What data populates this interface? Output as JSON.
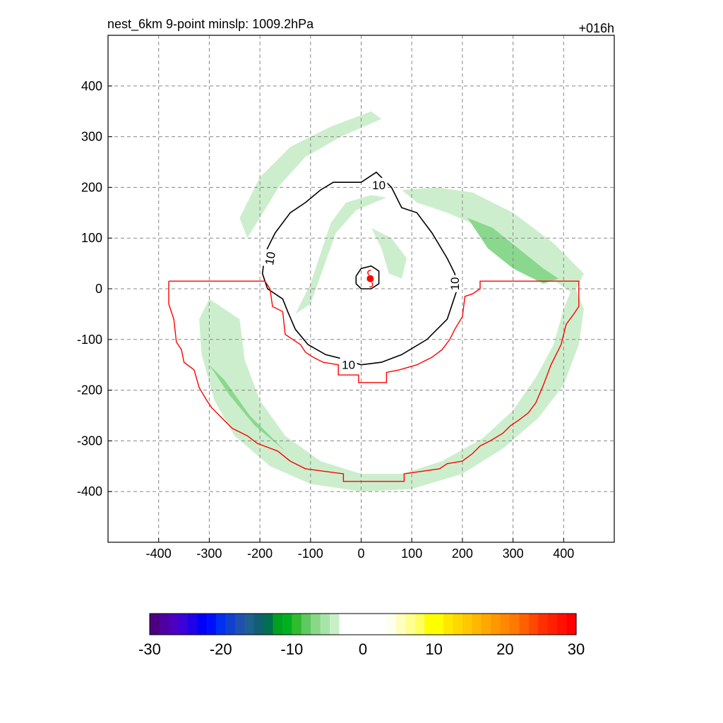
{
  "title_left": "nest_6km  9-point minslp: 1009.2hPa",
  "title_right": "+016h",
  "chart_data": {
    "type": "contour",
    "xlim": [
      -500,
      500
    ],
    "ylim": [
      -500,
      500
    ],
    "x_ticks": [
      -400,
      -300,
      -200,
      -100,
      0,
      100,
      200,
      300,
      400
    ],
    "y_ticks": [
      -400,
      -300,
      -200,
      -100,
      0,
      100,
      200,
      300,
      400
    ],
    "x_tick_labels": [
      "-400",
      "-300",
      "-200",
      "-100",
      "0",
      "100",
      "200",
      "300",
      "400"
    ],
    "y_tick_labels": [
      "-400",
      "-300",
      "-200",
      "-100",
      "0",
      "100",
      "200",
      "300",
      "400"
    ],
    "grid": true,
    "storm_center": [
      18,
      20
    ],
    "contour_label": "10",
    "contour_10": [
      [
        -170,
        110
      ],
      [
        -140,
        150
      ],
      [
        -110,
        170
      ],
      [
        -80,
        195
      ],
      [
        -55,
        210
      ],
      [
        0,
        210
      ],
      [
        30,
        230
      ],
      [
        60,
        200
      ],
      [
        80,
        160
      ],
      [
        110,
        150
      ],
      [
        140,
        110
      ],
      [
        170,
        60
      ],
      [
        185,
        30
      ],
      [
        190,
        0
      ],
      [
        170,
        -60
      ],
      [
        130,
        -100
      ],
      [
        80,
        -130
      ],
      [
        40,
        -145
      ],
      [
        0,
        -150
      ],
      [
        -30,
        -140
      ],
      [
        -70,
        -130
      ],
      [
        -105,
        -110
      ],
      [
        -130,
        -80
      ],
      [
        -145,
        -45
      ],
      [
        -155,
        -20
      ],
      [
        -185,
        0
      ],
      [
        -195,
        30
      ],
      [
        -190,
        70
      ],
      [
        -170,
        110
      ]
    ],
    "contour_inner": [
      [
        -10,
        25
      ],
      [
        0,
        40
      ],
      [
        20,
        45
      ],
      [
        35,
        35
      ],
      [
        35,
        10
      ],
      [
        20,
        0
      ],
      [
        0,
        0
      ],
      [
        -10,
        10
      ],
      [
        -10,
        25
      ]
    ],
    "red_domain_outline": [
      [
        -380,
        15
      ],
      [
        -190,
        15
      ],
      [
        -180,
        0
      ],
      [
        -175,
        -35
      ],
      [
        -155,
        -45
      ],
      [
        -150,
        -90
      ],
      [
        -135,
        -100
      ],
      [
        -120,
        -110
      ],
      [
        -110,
        -125
      ],
      [
        -95,
        -135
      ],
      [
        -75,
        -145
      ],
      [
        -45,
        -150
      ],
      [
        -45,
        -170
      ],
      [
        -5,
        -170
      ],
      [
        -5,
        -185
      ],
      [
        50,
        -185
      ],
      [
        50,
        -165
      ],
      [
        75,
        -160
      ],
      [
        110,
        -150
      ],
      [
        140,
        -135
      ],
      [
        160,
        -120
      ],
      [
        175,
        -100
      ],
      [
        185,
        -80
      ],
      [
        200,
        -55
      ],
      [
        205,
        -15
      ],
      [
        220,
        -10
      ],
      [
        235,
        0
      ],
      [
        235,
        15
      ],
      [
        430,
        15
      ],
      [
        430,
        -35
      ],
      [
        420,
        -50
      ],
      [
        405,
        -70
      ],
      [
        395,
        -110
      ],
      [
        375,
        -150
      ],
      [
        360,
        -190
      ],
      [
        345,
        -225
      ],
      [
        330,
        -245
      ],
      [
        310,
        -260
      ],
      [
        295,
        -270
      ],
      [
        280,
        -285
      ],
      [
        255,
        -300
      ],
      [
        235,
        -310
      ],
      [
        220,
        -325
      ],
      [
        200,
        -340
      ],
      [
        170,
        -345
      ],
      [
        155,
        -355
      ],
      [
        85,
        -365
      ],
      [
        85,
        -380
      ],
      [
        -35,
        -380
      ],
      [
        -35,
        -365
      ],
      [
        -110,
        -355
      ],
      [
        -140,
        -340
      ],
      [
        -165,
        -320
      ],
      [
        -205,
        -305
      ],
      [
        -225,
        -290
      ],
      [
        -255,
        -275
      ],
      [
        -275,
        -255
      ],
      [
        -295,
        -235
      ],
      [
        -305,
        -220
      ],
      [
        -320,
        -195
      ],
      [
        -330,
        -160
      ],
      [
        -350,
        -145
      ],
      [
        -355,
        -120
      ],
      [
        -365,
        -105
      ],
      [
        -370,
        -60
      ],
      [
        -380,
        -30
      ],
      [
        -380,
        15
      ]
    ],
    "green_bands": [
      {
        "level": -4,
        "points": [
          [
            -240,
            -60
          ],
          [
            -230,
            -140
          ],
          [
            -200,
            -220
          ],
          [
            -150,
            -290
          ],
          [
            -80,
            -340
          ],
          [
            0,
            -365
          ],
          [
            80,
            -365
          ],
          [
            160,
            -340
          ],
          [
            240,
            -295
          ],
          [
            300,
            -240
          ],
          [
            345,
            -175
          ],
          [
            380,
            -110
          ],
          [
            400,
            -40
          ],
          [
            420,
            10
          ],
          [
            440,
            -40
          ],
          [
            430,
            -110
          ],
          [
            400,
            -190
          ],
          [
            350,
            -255
          ],
          [
            280,
            -315
          ],
          [
            200,
            -365
          ],
          [
            100,
            -395
          ],
          [
            0,
            -400
          ],
          [
            -100,
            -385
          ],
          [
            -180,
            -350
          ],
          [
            -250,
            -290
          ],
          [
            -290,
            -220
          ],
          [
            -315,
            -130
          ],
          [
            -320,
            -60
          ],
          [
            -300,
            -20
          ],
          [
            -240,
            -60
          ]
        ]
      },
      {
        "level": -4,
        "points": [
          [
            -240,
            140
          ],
          [
            -200,
            220
          ],
          [
            -140,
            280
          ],
          [
            -60,
            320
          ],
          [
            20,
            350
          ],
          [
            40,
            335
          ],
          [
            -40,
            300
          ],
          [
            -110,
            260
          ],
          [
            -160,
            205
          ],
          [
            -200,
            140
          ],
          [
            -225,
            100
          ],
          [
            -240,
            140
          ]
        ]
      },
      {
        "level": -4,
        "points": [
          [
            80,
            195
          ],
          [
            150,
            200
          ],
          [
            220,
            190
          ],
          [
            300,
            150
          ],
          [
            380,
            90
          ],
          [
            440,
            30
          ],
          [
            420,
            -10
          ],
          [
            360,
            30
          ],
          [
            300,
            80
          ],
          [
            240,
            120
          ],
          [
            170,
            150
          ],
          [
            110,
            170
          ],
          [
            80,
            195
          ]
        ]
      },
      {
        "level": -4,
        "points": [
          [
            -130,
            -50
          ],
          [
            -100,
            10
          ],
          [
            -80,
            70
          ],
          [
            -60,
            130
          ],
          [
            -30,
            170
          ],
          [
            20,
            185
          ],
          [
            50,
            180
          ],
          [
            -10,
            155
          ],
          [
            -50,
            110
          ],
          [
            -75,
            40
          ],
          [
            -100,
            -30
          ],
          [
            -130,
            -50
          ]
        ]
      },
      {
        "level": -4,
        "points": [
          [
            20,
            120
          ],
          [
            60,
            100
          ],
          [
            90,
            60
          ],
          [
            80,
            20
          ],
          [
            55,
            30
          ],
          [
            40,
            80
          ],
          [
            20,
            120
          ]
        ]
      },
      {
        "level": -8,
        "points": [
          [
            210,
            140
          ],
          [
            260,
            120
          ],
          [
            310,
            80
          ],
          [
            360,
            40
          ],
          [
            390,
            20
          ],
          [
            360,
            10
          ],
          [
            300,
            40
          ],
          [
            250,
            80
          ],
          [
            210,
            140
          ]
        ]
      },
      {
        "level": -8,
        "points": [
          [
            -300,
            -150
          ],
          [
            -260,
            -210
          ],
          [
            -210,
            -270
          ],
          [
            -150,
            -320
          ],
          [
            -170,
            -300
          ],
          [
            -220,
            -250
          ],
          [
            -270,
            -180
          ],
          [
            -300,
            -150
          ]
        ]
      }
    ]
  },
  "colorbar": {
    "tick_labels": [
      "-30",
      "-20",
      "-10",
      "0",
      "10",
      "20",
      "30"
    ],
    "colors": [
      "#4b0080",
      "#4e00a0",
      "#4c00c0",
      "#3c00d8",
      "#2000e8",
      "#0000f8",
      "#0010ff",
      "#0030f0",
      "#1040d0",
      "#2050b0",
      "#206090",
      "#106070",
      "#007050",
      "#00a020",
      "#00b020",
      "#30bb30",
      "#60c860",
      "#88d888",
      "#a8e4a8",
      "#c8f0c8",
      "#ffffff",
      "#ffffff",
      "#ffffff",
      "#ffffff",
      "#ffffff",
      "#fffff0",
      "#ffffc0",
      "#ffff90",
      "#ffff60",
      "#ffff00",
      "#ffff00",
      "#ffe800",
      "#ffd800",
      "#ffc800",
      "#ffb800",
      "#ffa800",
      "#ff9800",
      "#ff8800",
      "#ff7800",
      "#ff6000",
      "#ff4800",
      "#ff3000",
      "#ff2000",
      "#ff1000",
      "#ff0000"
    ],
    "range": [
      -30,
      30
    ]
  }
}
